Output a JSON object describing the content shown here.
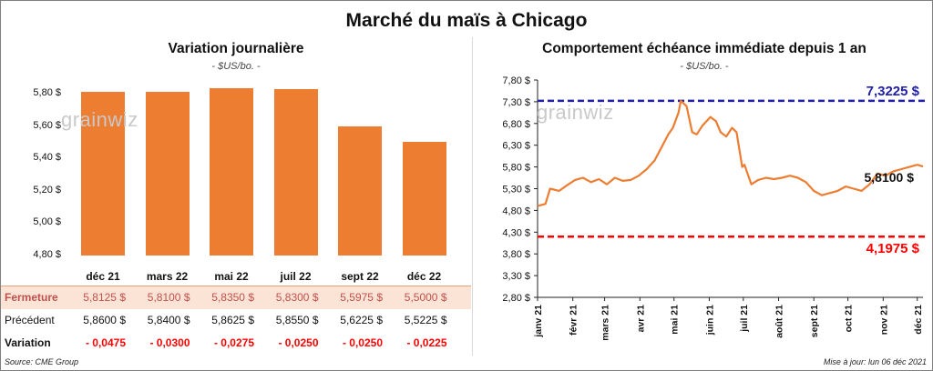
{
  "main_title": "Marché du maïs à Chicago",
  "left_chart": {
    "title": "Variation  journalière",
    "unit": "- $US/bo. -",
    "watermark": "grainwiz"
  },
  "right_chart": {
    "title": "Comportement  échéance immédiate depuis 1 an",
    "unit": "- $US/bo. -",
    "watermark": "grainwiz"
  },
  "table": {
    "rows": [
      {
        "label": "Fermeture",
        "values": [
          "5,8125  $",
          "5,8100  $",
          "5,8350  $",
          "5,8300  $",
          "5,5975  $",
          "5,5000  $"
        ],
        "color": "#c0504d",
        "bg": "#fbe4d5"
      },
      {
        "label": "Précédent",
        "values": [
          "5,8600  $",
          "5,8400  $",
          "5,8625  $",
          "5,8550  $",
          "5,6225  $",
          "5,5225  $"
        ],
        "color": "#111111",
        "bg": "#ffffff"
      },
      {
        "label": "Variation",
        "values": [
          "- 0,0475",
          "- 0,0300",
          "- 0,0275",
          "- 0,0250",
          "- 0,0250",
          "- 0,0225"
        ],
        "color": "#ff0000",
        "bg": "#ffffff"
      }
    ]
  },
  "footer": {
    "source": "Source: CME Group",
    "updated": "Mise à jour: lun 06 déc 2021"
  },
  "colors": {
    "bar": "#ed7d31",
    "line": "#ed7d31",
    "high_line": "#1f1fa8",
    "low_line": "#ff0000"
  },
  "chart_data": [
    {
      "type": "bar",
      "categories": [
        "déc 21",
        "mars 22",
        "mai 22",
        "juil 22",
        "sept 22",
        "déc 22"
      ],
      "values": [
        5.8125,
        5.81,
        5.835,
        5.83,
        5.5975,
        5.5
      ],
      "ylim": [
        4.8,
        5.8
      ],
      "yticks": [
        "4,80 $",
        "5,00 $",
        "5,20 $",
        "5,40 $",
        "5,60 $",
        "5,80 $"
      ],
      "xlabel": "",
      "ylabel": ""
    },
    {
      "type": "line",
      "x_labels": [
        "janv 21",
        "févr 21",
        "mars 21",
        "avr 21",
        "mai 21",
        "juin 21",
        "juil 21",
        "août 21",
        "sept 21",
        "oct 21",
        "nov 21",
        "déc 21"
      ],
      "x_range": [
        "2021-01-01",
        "2021-12-06"
      ],
      "ylim": [
        2.8,
        7.8
      ],
      "yticks": [
        "2,80 $",
        "3,30 $",
        "3,80 $",
        "4,30 $",
        "4,80 $",
        "5,30 $",
        "5,80 $",
        "6,30 $",
        "6,80 $",
        "7,30 $",
        "7,80 $"
      ],
      "series": [
        {
          "points": [
            [
              "2021-01-01",
              4.9
            ],
            [
              "2021-01-08",
              4.95
            ],
            [
              "2021-01-12",
              5.3
            ],
            [
              "2021-01-20",
              5.25
            ],
            [
              "2021-01-27",
              5.38
            ],
            [
              "2021-02-03",
              5.5
            ],
            [
              "2021-02-10",
              5.55
            ],
            [
              "2021-02-17",
              5.45
            ],
            [
              "2021-02-24",
              5.52
            ],
            [
              "2021-03-03",
              5.4
            ],
            [
              "2021-03-10",
              5.55
            ],
            [
              "2021-03-17",
              5.48
            ],
            [
              "2021-03-24",
              5.5
            ],
            [
              "2021-03-31",
              5.6
            ],
            [
              "2021-04-07",
              5.75
            ],
            [
              "2021-04-14",
              5.95
            ],
            [
              "2021-04-21",
              6.3
            ],
            [
              "2021-04-26",
              6.55
            ],
            [
              "2021-04-30",
              6.7
            ],
            [
              "2021-05-05",
              7.05
            ],
            [
              "2021-05-07",
              7.32
            ],
            [
              "2021-05-12",
              7.2
            ],
            [
              "2021-05-17",
              6.6
            ],
            [
              "2021-05-21",
              6.55
            ],
            [
              "2021-05-26",
              6.75
            ],
            [
              "2021-06-02",
              6.95
            ],
            [
              "2021-06-07",
              6.85
            ],
            [
              "2021-06-11",
              6.6
            ],
            [
              "2021-06-16",
              6.5
            ],
            [
              "2021-06-21",
              6.7
            ],
            [
              "2021-06-25",
              6.6
            ],
            [
              "2021-06-30",
              5.8
            ],
            [
              "2021-07-02",
              5.85
            ],
            [
              "2021-07-08",
              5.4
            ],
            [
              "2021-07-14",
              5.5
            ],
            [
              "2021-07-21",
              5.55
            ],
            [
              "2021-07-28",
              5.52
            ],
            [
              "2021-08-04",
              5.55
            ],
            [
              "2021-08-11",
              5.6
            ],
            [
              "2021-08-18",
              5.55
            ],
            [
              "2021-08-25",
              5.45
            ],
            [
              "2021-09-01",
              5.25
            ],
            [
              "2021-09-08",
              5.15
            ],
            [
              "2021-09-15",
              5.2
            ],
            [
              "2021-09-22",
              5.25
            ],
            [
              "2021-09-29",
              5.35
            ],
            [
              "2021-10-06",
              5.3
            ],
            [
              "2021-10-13",
              5.25
            ],
            [
              "2021-10-20",
              5.4
            ],
            [
              "2021-10-27",
              5.65
            ],
            [
              "2021-11-03",
              5.6
            ],
            [
              "2021-11-10",
              5.7
            ],
            [
              "2021-11-17",
              5.75
            ],
            [
              "2021-11-24",
              5.8
            ],
            [
              "2021-12-01",
              5.85
            ],
            [
              "2021-12-06",
              5.81
            ]
          ]
        }
      ],
      "reference_lines": [
        {
          "value": 7.3225,
          "label": "7,3225 $",
          "style": "dashed",
          "color": "#1f1fa8"
        },
        {
          "value": 4.1975,
          "label": "4,1975 $",
          "style": "dashed",
          "color": "#ff0000"
        }
      ],
      "last_label": "5,8100 $",
      "xlabel": "",
      "ylabel": ""
    }
  ]
}
